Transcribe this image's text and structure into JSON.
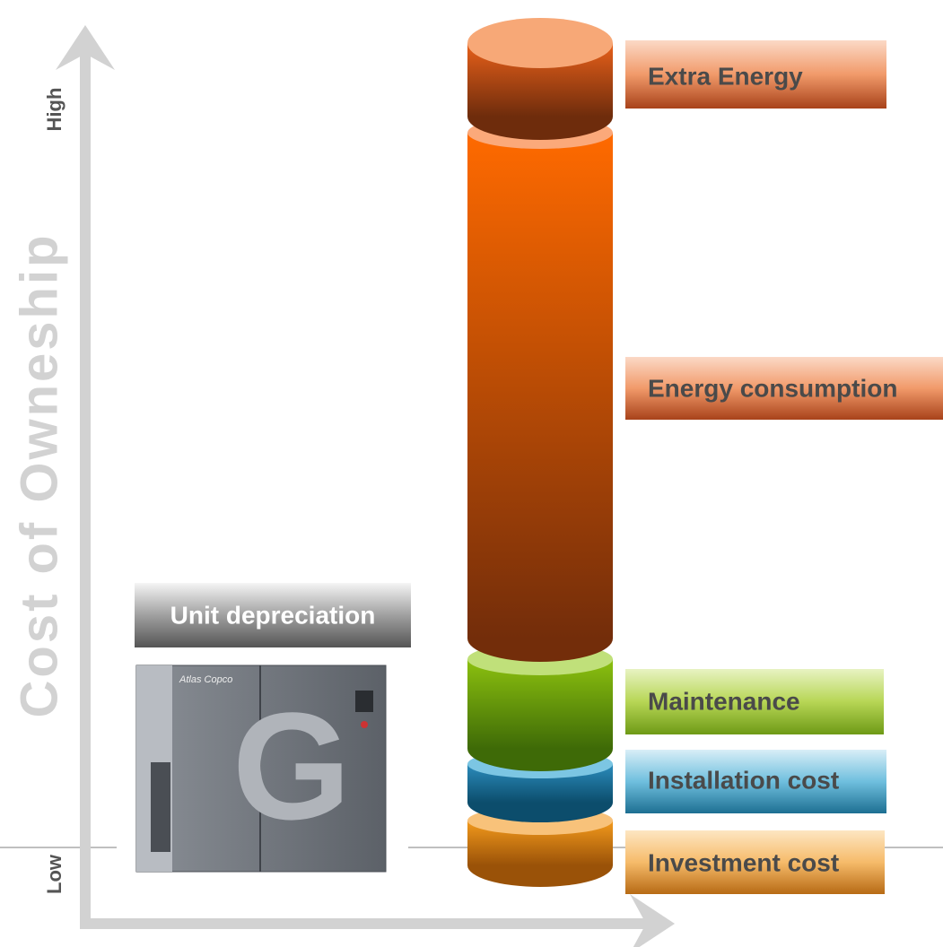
{
  "axis": {
    "high": "High",
    "low": "Low",
    "title": "Cost of Owneship"
  },
  "segments": [
    {
      "label": "Extra Energy"
    },
    {
      "label": "Energy consumption"
    },
    {
      "label": "Maintenance"
    },
    {
      "label": "Installation cost"
    },
    {
      "label": "Investment cost"
    }
  ],
  "unit_label": "Unit depreciation",
  "machine": {
    "brand": "Atlas Copco",
    "letter": "G"
  }
}
